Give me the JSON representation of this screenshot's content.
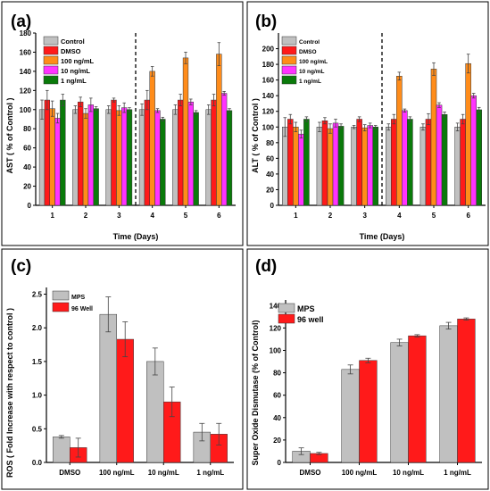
{
  "chart_data": [
    {
      "panel_label": "(a)",
      "type": "bar",
      "xlabel": "Time (Days)",
      "ylabel": "AST ( % of Control )",
      "ylim": [
        0,
        180
      ],
      "yticks": [
        0,
        20,
        40,
        60,
        80,
        100,
        120,
        140,
        160,
        180
      ],
      "categories": [
        "1",
        "2",
        "3",
        "4",
        "5",
        "6"
      ],
      "legend": "top-left",
      "divider_after_category": 3,
      "series": [
        {
          "name": "Control",
          "color": "#c0c0c0",
          "values": [
            100,
            100,
            100,
            100,
            100,
            100
          ],
          "errors": [
            10,
            4,
            4,
            6,
            5,
            5
          ]
        },
        {
          "name": "DMSO",
          "color": "#ff1a1a",
          "values": [
            110,
            108,
            110,
            110,
            110,
            110
          ],
          "errors": [
            10,
            5,
            2,
            10,
            6,
            6
          ]
        },
        {
          "name": "100 ng/mL",
          "color": "#ff8c1a",
          "values": [
            101,
            96,
            99,
            140,
            154,
            158
          ],
          "errors": [
            8,
            5,
            5,
            5,
            6,
            12
          ]
        },
        {
          "name": "10 ng/mL",
          "color": "#ff33ff",
          "values": [
            91,
            105,
            102,
            99,
            108,
            117
          ],
          "errors": [
            5,
            7,
            5,
            2,
            3,
            2
          ]
        },
        {
          "name": "1 ng/mL",
          "color": "#0a7a0a",
          "values": [
            110,
            101,
            100,
            90,
            97,
            99
          ],
          "errors": [
            6,
            2,
            2,
            2,
            2,
            2
          ]
        }
      ]
    },
    {
      "panel_label": "(b)",
      "type": "bar",
      "xlabel": "Time (Days)",
      "ylabel": "ALT ( % of Control )",
      "ylim": [
        0,
        220
      ],
      "yticks": [
        0,
        20,
        40,
        60,
        80,
        100,
        120,
        140,
        160,
        180,
        200
      ],
      "categories": [
        "1",
        "2",
        "3",
        "4",
        "5",
        "6"
      ],
      "legend": "top-left",
      "divider_after_category": 3,
      "series": [
        {
          "name": "Control",
          "color": "#c0c0c0",
          "values": [
            100,
            100,
            100,
            100,
            100,
            100
          ],
          "errors": [
            12,
            6,
            2,
            4,
            4,
            5
          ]
        },
        {
          "name": "DMSO",
          "color": "#ff1a1a",
          "values": [
            110,
            108,
            110,
            110,
            110,
            110
          ],
          "errors": [
            6,
            4,
            3,
            6,
            7,
            6
          ]
        },
        {
          "name": "100 ng/mL",
          "color": "#ff8c1a",
          "values": [
            100,
            98,
            99,
            165,
            174,
            181
          ],
          "errors": [
            6,
            6,
            4,
            5,
            8,
            12
          ]
        },
        {
          "name": "10 ng/mL",
          "color": "#ff33ff",
          "values": [
            91,
            105,
            102,
            121,
            128,
            140
          ],
          "errors": [
            5,
            5,
            3,
            2,
            3,
            3
          ]
        },
        {
          "name": "1 ng/mL",
          "color": "#0a7a0a",
          "values": [
            110,
            101,
            100,
            110,
            116,
            122
          ],
          "errors": [
            3,
            3,
            2,
            3,
            3,
            3
          ]
        }
      ]
    },
    {
      "panel_label": "(c)",
      "type": "bar",
      "xlabel": "",
      "ylabel": "ROS ( Fold Increase with respect to control )",
      "ylim": [
        0,
        2.6
      ],
      "yticks": [
        0.0,
        0.5,
        1.0,
        1.5,
        2.0,
        2.5
      ],
      "categories": [
        "DMSO",
        "100 ng/mL",
        "10 ng/mL",
        "1 ng/mL"
      ],
      "legend": "top-left",
      "series": [
        {
          "name": "MPS",
          "color": "#c0c0c0",
          "values": [
            0.38,
            2.2,
            1.5,
            0.45
          ],
          "errors": [
            0.02,
            0.26,
            0.2,
            0.13
          ]
        },
        {
          "name": "96 Well",
          "color": "#ff1a1a",
          "values": [
            0.22,
            1.83,
            0.9,
            0.42
          ],
          "errors": [
            0.14,
            0.26,
            0.22,
            0.16
          ]
        }
      ]
    },
    {
      "panel_label": "(d)",
      "type": "bar",
      "xlabel": "",
      "ylabel": "Super Oxide Dismutase (% of Control)",
      "ylim": [
        0,
        145
      ],
      "yticks": [
        0,
        20,
        40,
        60,
        80,
        100,
        120,
        140
      ],
      "categories": [
        "DMSO",
        "100 ng/mL",
        "10 ng/mL",
        "1 ng/mL"
      ],
      "legend": "top-left",
      "series": [
        {
          "name": "MPS",
          "color": "#c0c0c0",
          "values": [
            10,
            83,
            107,
            122
          ],
          "errors": [
            3,
            4,
            3,
            3
          ]
        },
        {
          "name": "96 well",
          "color": "#ff1a1a",
          "values": [
            8,
            91,
            113,
            128
          ],
          "errors": [
            1,
            2,
            1,
            1
          ]
        }
      ]
    }
  ]
}
